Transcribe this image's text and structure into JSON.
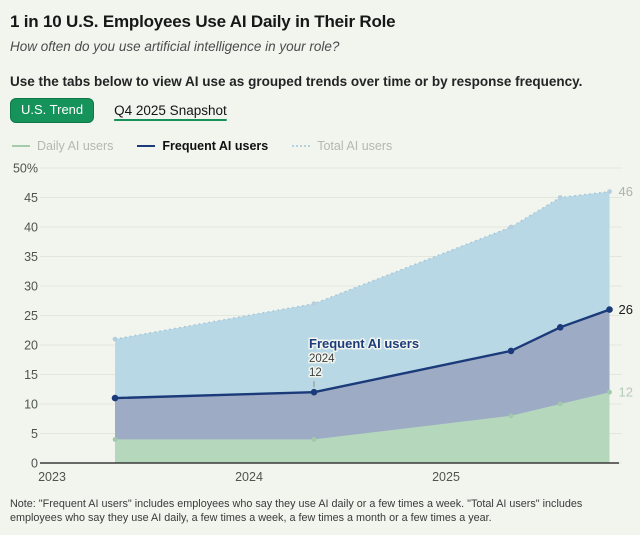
{
  "header": {
    "title": "1 in 10 U.S. Employees Use AI Daily in Their Role",
    "subtitle": "How often do you use artificial intelligence in your role?",
    "instruction": "Use the tabs below to view AI use as grouped trends over time or by response frequency."
  },
  "tabs": [
    {
      "label": "U.S. Trend",
      "active": true
    },
    {
      "label": "Q4 2025 Snapshot",
      "active": false
    }
  ],
  "legend": [
    {
      "label": "Daily AI users",
      "swatch_color": "#a5cbad",
      "text_color": "#b2b9b0",
      "style": "solid",
      "bold": false
    },
    {
      "label": "Frequent AI users",
      "swatch_color": "#1b3a7a",
      "text_color": "#101010",
      "style": "solid",
      "bold": true
    },
    {
      "label": "Total AI users",
      "swatch_color": "#b5d0e0",
      "text_color": "#b2b9b0",
      "style": "dotted",
      "bold": false
    }
  ],
  "chart_data": {
    "type": "area",
    "x": [
      2023.32,
      2024.33,
      2025.33,
      2025.58,
      2025.83
    ],
    "x_ticks": [
      2023,
      2024,
      2025
    ],
    "x_tick_labels": [
      "2023",
      "2024",
      "2025"
    ],
    "y_ticks": [
      0,
      5,
      10,
      15,
      20,
      25,
      30,
      35,
      40,
      45,
      50
    ],
    "y_top_label": "50%",
    "ylim": [
      0,
      50
    ],
    "grid": true,
    "series": [
      {
        "name": "Total AI users",
        "values": [
          21,
          27,
          40,
          45,
          46
        ],
        "fill": "#b9d8e6",
        "line": "#9fc3d6",
        "line_style": "dotted",
        "marker_color": "#b6cedd",
        "end_label": "46",
        "end_label_color": "#abb3ad"
      },
      {
        "name": "Frequent AI users",
        "values": [
          11,
          12,
          19,
          23,
          26
        ],
        "fill": "#9dabc5",
        "line": "#1b3a7a",
        "line_style": "solid",
        "marker_color": "#1b3a7a",
        "end_label": "26",
        "end_label_color": "#1a1a1a"
      },
      {
        "name": "Daily AI users",
        "values": [
          4,
          4,
          8,
          10,
          12
        ],
        "fill": "#b5d8bd",
        "line": "#a3c9ad",
        "line_style": "none",
        "marker_color": "#a3c9ad",
        "end_label": "12",
        "end_label_color": "#b4c9b6"
      }
    ],
    "annotation": {
      "title": "Frequent AI users",
      "line1": "2024",
      "line2": "12",
      "x": 2024.33,
      "y": 12
    }
  },
  "note": "Note: \"Frequent AI users\" includes employees who say they use AI daily or a few times a week. \"Total AI users\" includes employees who say they use AI daily, a few times a week, a few times a month or a few times a year."
}
